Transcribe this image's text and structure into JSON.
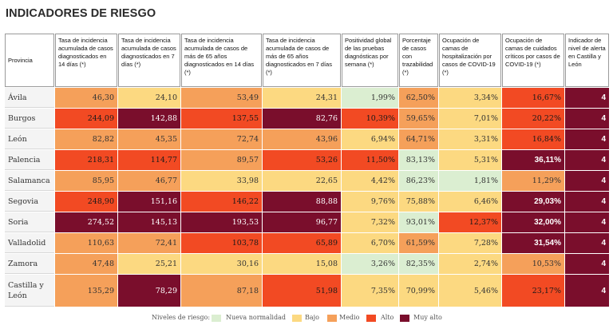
{
  "title": "INDICADORES DE RIESGO",
  "colors": {
    "nueva": "#dbeed1",
    "bajo": "#fcd981",
    "medio": "#f5a05a",
    "alto": "#f24a23",
    "muyalto": "#7a0e2c"
  },
  "headers": [
    "Provincia",
    "Tasa de incidencia acumulada de casos diagnosticados en 14 días (*)",
    "Tasa de incidencia acumulada de casos diagnosticados en 7 días (*)",
    "Tasa de incidencia acumulada de casos de más de 65 años diagnosticados en 14 días (*)",
    "Tasa de incidencia acumulada de casos de más de 65 años diagnosticados en 7 días (*)",
    "Positividad global de las pruebas diagnósticas por semana (*)",
    "Porcentaje de casos con trazabilidad (*)",
    "Ocupación de camas de hospitalización por casos de COVID-19 (*)",
    "Ocupación de camas de cuidados críticos por casos de COVID-19 (*)",
    "Indicador de nivel de alerta en Castilla y León"
  ],
  "rows": [
    {
      "prov": "Ávila",
      "v": [
        "46,30",
        "24,10",
        "53,49",
        "24,31",
        "1,99%",
        "62,50%",
        "3,34%",
        "16,67%",
        "4"
      ],
      "lv": [
        "medio",
        "bajo",
        "medio",
        "bajo",
        "nueva",
        "medio",
        "bajo",
        "alto",
        "muyalto"
      ]
    },
    {
      "prov": "Burgos",
      "v": [
        "244,09",
        "142,88",
        "137,55",
        "82,76",
        "10,39%",
        "59,65%",
        "7,01%",
        "20,22%",
        "4"
      ],
      "lv": [
        "alto",
        "muyalto",
        "alto",
        "muyalto",
        "alto",
        "medio",
        "bajo",
        "alto",
        "muyalto"
      ]
    },
    {
      "prov": "León",
      "v": [
        "82,82",
        "45,35",
        "72,74",
        "43,96",
        "6,94%",
        "64,71%",
        "3,31%",
        "16,84%",
        "4"
      ],
      "lv": [
        "medio",
        "medio",
        "medio",
        "medio",
        "bajo",
        "medio",
        "bajo",
        "alto",
        "muyalto"
      ]
    },
    {
      "prov": "Palencia",
      "v": [
        "218,31",
        "114,77",
        "89,57",
        "53,26",
        "11,50%",
        "83,13%",
        "5,31%",
        "36,11%",
        "4"
      ],
      "lv": [
        "alto",
        "alto",
        "medio",
        "alto",
        "alto",
        "nueva",
        "bajo",
        "muyalto",
        "muyalto"
      ]
    },
    {
      "prov": "Salamanca",
      "v": [
        "85,95",
        "46,77",
        "33,98",
        "22,65",
        "4,42%",
        "86,23%",
        "1,81%",
        "11,29%",
        "4"
      ],
      "lv": [
        "medio",
        "medio",
        "bajo",
        "bajo",
        "bajo",
        "nueva",
        "nueva",
        "medio",
        "muyalto"
      ]
    },
    {
      "prov": "Segovia",
      "v": [
        "248,90",
        "151,16",
        "146,22",
        "88,88",
        "9,76%",
        "75,88%",
        "6,46%",
        "29,03%",
        "4"
      ],
      "lv": [
        "alto",
        "muyalto",
        "alto",
        "muyalto",
        "bajo",
        "bajo",
        "bajo",
        "muyalto",
        "muyalto"
      ]
    },
    {
      "prov": "Soria",
      "v": [
        "274,52",
        "145,13",
        "193,53",
        "96,77",
        "7,32%",
        "93,01%",
        "12,37%",
        "32,00%",
        "4"
      ],
      "lv": [
        "muyalto",
        "muyalto",
        "muyalto",
        "muyalto",
        "bajo",
        "nueva",
        "alto",
        "muyalto",
        "muyalto"
      ]
    },
    {
      "prov": "Valladolid",
      "v": [
        "110,63",
        "72,41",
        "103,78",
        "65,89",
        "6,70%",
        "61,59%",
        "7,28%",
        "31,54%",
        "4"
      ],
      "lv": [
        "medio",
        "medio",
        "alto",
        "alto",
        "bajo",
        "medio",
        "bajo",
        "muyalto",
        "muyalto"
      ]
    },
    {
      "prov": "Zamora",
      "v": [
        "47,48",
        "25,21",
        "30,16",
        "15,08",
        "3,26%",
        "82,35%",
        "2,74%",
        "10,53%",
        "4"
      ],
      "lv": [
        "medio",
        "bajo",
        "bajo",
        "bajo",
        "nueva",
        "nueva",
        "bajo",
        "medio",
        "muyalto"
      ]
    },
    {
      "prov": "Castilla y León",
      "v": [
        "135,29",
        "78,29",
        "87,18",
        "51,98",
        "7,35%",
        "70,99%",
        "5,46%",
        "23,17%",
        "4"
      ],
      "lv": [
        "medio",
        "muyalto",
        "medio",
        "alto",
        "bajo",
        "bajo",
        "bajo",
        "alto",
        "muyalto"
      ]
    }
  ],
  "legend": {
    "title": "Niveles de riesgo:",
    "items": [
      {
        "label": "Nueva normalidad",
        "level": "nueva"
      },
      {
        "label": "Bajo",
        "level": "bajo"
      },
      {
        "label": "Medio",
        "level": "medio"
      },
      {
        "label": "Alto",
        "level": "alto"
      },
      {
        "label": "Muy alto",
        "level": "muyalto"
      }
    ]
  }
}
